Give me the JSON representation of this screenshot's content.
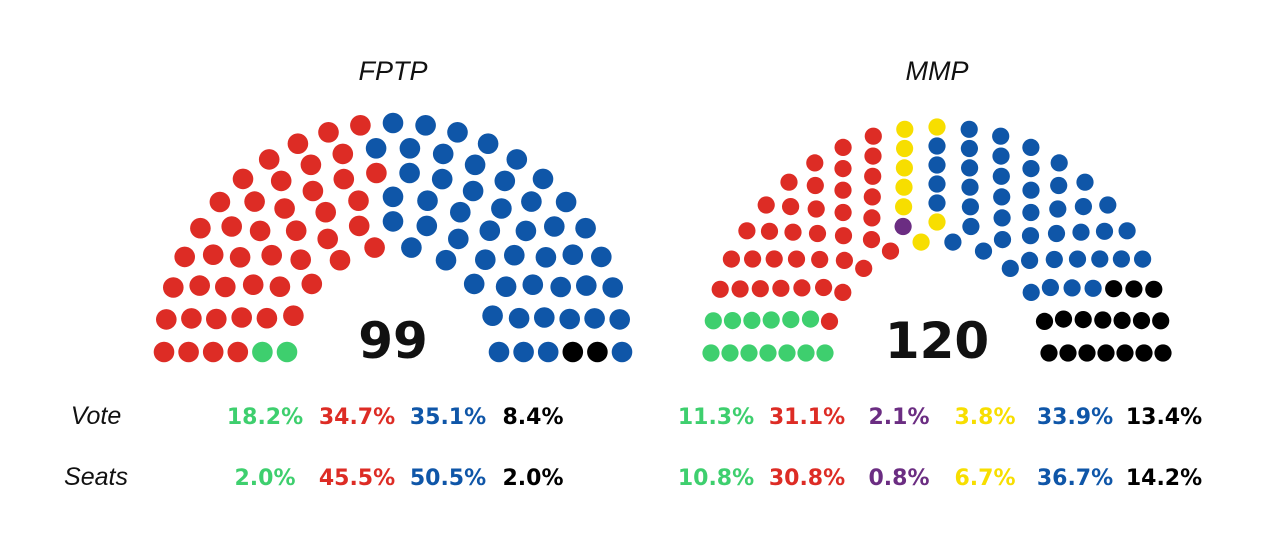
{
  "chart_data": [
    {
      "type": "parliament",
      "title": "FPTP",
      "total_seats": 99,
      "total_label": "99",
      "parties": [
        {
          "color": "#3ecf6e",
          "seats": 2,
          "vote": "18.2%",
          "seats_pct": "2.0%"
        },
        {
          "color": "#dd2c25",
          "seats": 45,
          "vote": "34.7%",
          "seats_pct": "45.5%"
        },
        {
          "color": "#0f56a8",
          "seats": 50,
          "vote": "35.1%",
          "seats_pct": "50.5%"
        },
        {
          "color": "#000000",
          "seats": 2,
          "vote": "8.4%",
          "seats_pct": "2.0%"
        }
      ]
    },
    {
      "type": "parliament",
      "title": "MMP",
      "total_seats": 120,
      "total_label": "120",
      "parties": [
        {
          "color": "#3ecf6e",
          "seats": 13,
          "vote": "11.3%",
          "seats_pct": "10.8%"
        },
        {
          "color": "#dd2c25",
          "seats": 37,
          "vote": "31.1%",
          "seats_pct": "30.8%"
        },
        {
          "color": "#6b2d82",
          "seats": 1,
          "vote": "2.1%",
          "seats_pct": "0.8%"
        },
        {
          "color": "#f7de00",
          "seats": 8,
          "vote": "3.8%",
          "seats_pct": "6.7%"
        },
        {
          "color": "#0f56a8",
          "seats": 44,
          "vote": "33.9%",
          "seats_pct": "36.7%"
        },
        {
          "color": "#000000",
          "seats": 17,
          "vote": "13.4%",
          "seats_pct": "14.2%"
        }
      ]
    }
  ],
  "row_labels": {
    "vote": "Vote",
    "seats": "Seats"
  }
}
